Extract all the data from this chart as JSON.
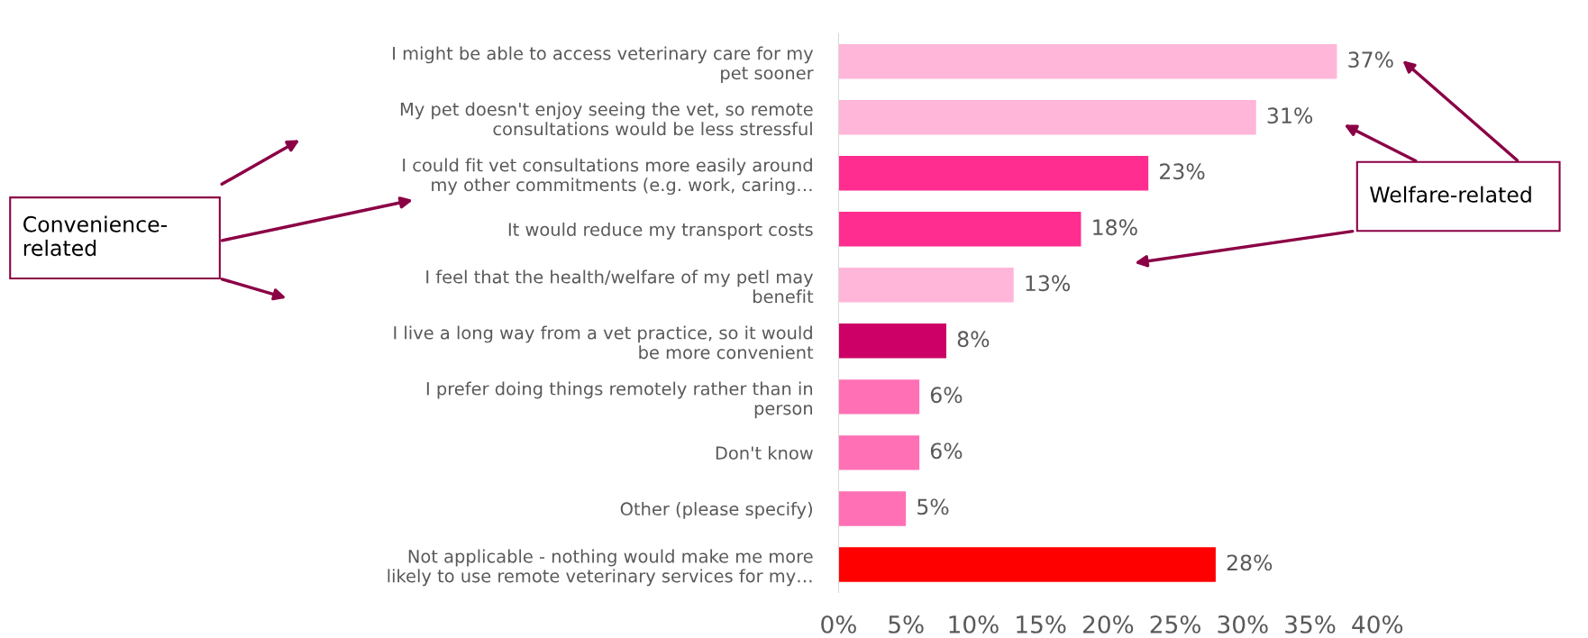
{
  "chart_data": {
    "type": "bar",
    "orientation": "horizontal",
    "categories": [
      "I might be able to access veterinary care for my\npet sooner",
      "My pet doesn't enjoy seeing the vet, so remote\nconsultations would be less stressful",
      "I could fit vet consultations more easily around\nmy other commitments (e.g. work, caring…",
      "It would reduce my transport costs",
      "I feel that the health/welfare of my petl may\nbenefit",
      "I live a long way from a vet practice, so it would\nbe more convenient",
      "I prefer doing things remotely rather than in\nperson",
      "Don't know",
      "Other (please specify)",
      "Not applicable - nothing would make me more\nlikely to use remote veterinary services for my…"
    ],
    "values": [
      37,
      31,
      23,
      18,
      13,
      8,
      6,
      6,
      5,
      28
    ],
    "value_labels": [
      "37%",
      "31%",
      "23%",
      "18%",
      "13%",
      "8%",
      "6%",
      "6%",
      "5%",
      "28%"
    ],
    "colors": [
      "#ffb6d9",
      "#ffb6d9",
      "#ff2d8f",
      "#ff2d8f",
      "#ffb6d9",
      "#cc0066",
      "#ff70b5",
      "#ff70b5",
      "#ff70b5",
      "#ff0000"
    ],
    "xlim": [
      0,
      40
    ],
    "xticks": [
      {
        "value": 0,
        "label": "0%"
      },
      {
        "value": 5,
        "label": "5%"
      },
      {
        "value": 10,
        "label": "10%"
      },
      {
        "value": 15,
        "label": "15%"
      },
      {
        "value": 20,
        "label": "20%"
      },
      {
        "value": 25,
        "label": "25%"
      },
      {
        "value": 30,
        "label": "30%"
      },
      {
        "value": 35,
        "label": "35%"
      },
      {
        "value": 40,
        "label": "40%"
      }
    ],
    "annotations": [
      "Convenience-\nrelated",
      "Welfare-related"
    ],
    "grid": false,
    "legend": false
  }
}
